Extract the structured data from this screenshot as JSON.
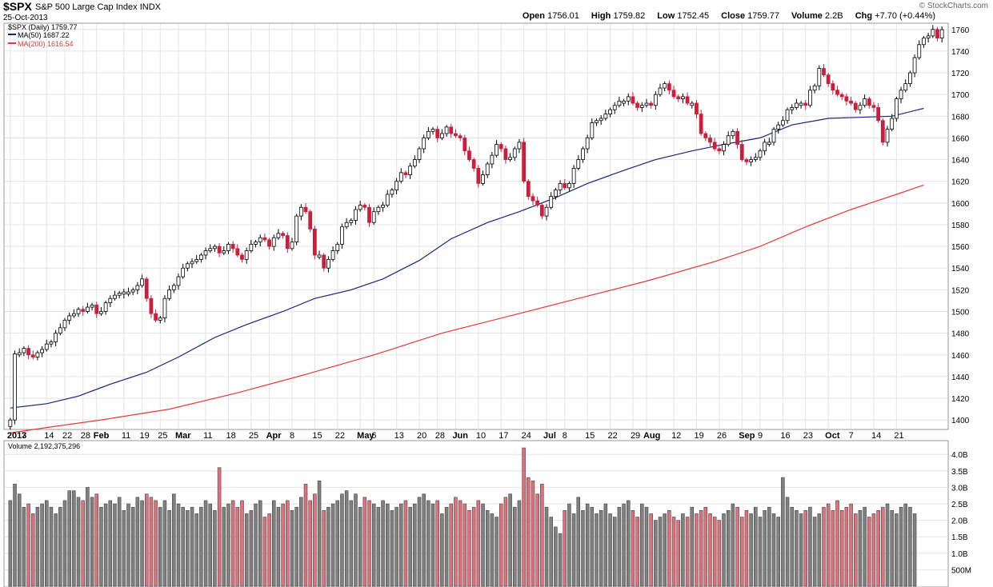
{
  "header": {
    "symbol": "$SPX",
    "name": "S&P 500 Large Cap Index",
    "exchange": "INDX",
    "date": "25-Oct-2013",
    "brand": "© StockCharts.com",
    "open_label": "Open",
    "open": "1756.01",
    "high_label": "High",
    "high": "1759.82",
    "low_label": "Low",
    "low": "1752.45",
    "close_label": "Close",
    "close": "1759.77",
    "volume_label": "Volume",
    "volume": "2.2B",
    "chg_label": "Chg",
    "chg": "+7.70 (+0.44%)"
  },
  "legend": {
    "price": "$SPX (Daily) 1759.77",
    "ma50": "MA(50) 1687.22",
    "ma200": "MA(200) 1616.54"
  },
  "colors": {
    "up": "#000000",
    "down": "#cc1e3c",
    "ma50": "#1a237e",
    "ma200": "#e53935",
    "vol_up": "#808080",
    "vol_down": "#e0707a",
    "grid": "#e4e4e4"
  },
  "chart_data": [
    {
      "type": "candlestick",
      "ylim": [
        1392,
        1765
      ],
      "y_ticks": [
        1400,
        1420,
        1440,
        1460,
        1480,
        1500,
        1520,
        1540,
        1560,
        1580,
        1600,
        1620,
        1640,
        1660,
        1680,
        1700,
        1720,
        1740,
        1760
      ],
      "x_tick_labels": [
        {
          "label": "2013",
          "i": 0,
          "bold": true
        },
        {
          "label": "7",
          "i": 3
        },
        {
          "label": "14",
          "i": 8
        },
        {
          "label": "22",
          "i": 12
        },
        {
          "label": "28",
          "i": 16
        },
        {
          "label": "Feb",
          "i": 19,
          "bold": true
        },
        {
          "label": "11",
          "i": 25
        },
        {
          "label": "19",
          "i": 29
        },
        {
          "label": "25",
          "i": 33
        },
        {
          "label": "Mar",
          "i": 37,
          "bold": true
        },
        {
          "label": "11",
          "i": 43
        },
        {
          "label": "18",
          "i": 48
        },
        {
          "label": "25",
          "i": 53
        },
        {
          "label": "Apr",
          "i": 57,
          "bold": true
        },
        {
          "label": "8",
          "i": 62
        },
        {
          "label": "15",
          "i": 67
        },
        {
          "label": "22",
          "i": 72
        },
        {
          "label": "May",
          "i": 77,
          "bold": true
        },
        {
          "label": "6",
          "i": 80
        },
        {
          "label": "13",
          "i": 85
        },
        {
          "label": "20",
          "i": 90
        },
        {
          "label": "28",
          "i": 94
        },
        {
          "label": "Jun",
          "i": 98,
          "bold": true
        },
        {
          "label": "10",
          "i": 103
        },
        {
          "label": "17",
          "i": 108
        },
        {
          "label": "24",
          "i": 113
        },
        {
          "label": "Jul",
          "i": 118,
          "bold": true
        },
        {
          "label": "8",
          "i": 122
        },
        {
          "label": "15",
          "i": 127
        },
        {
          "label": "22",
          "i": 132
        },
        {
          "label": "29",
          "i": 137
        },
        {
          "label": "Aug",
          "i": 140,
          "bold": true
        },
        {
          "label": "12",
          "i": 146
        },
        {
          "label": "19",
          "i": 151
        },
        {
          "label": "26",
          "i": 156
        },
        {
          "label": "Sep",
          "i": 161,
          "bold": true
        },
        {
          "label": "9",
          "i": 165
        },
        {
          "label": "16",
          "i": 170
        },
        {
          "label": "23",
          "i": 175
        },
        {
          "label": "Oct",
          "i": 180,
          "bold": true
        },
        {
          "label": "7",
          "i": 185
        },
        {
          "label": "14",
          "i": 190
        },
        {
          "label": "21",
          "i": 195
        }
      ],
      "close": [
        1400,
        1461,
        1462,
        1466,
        1460,
        1458,
        1462,
        1465,
        1470,
        1472,
        1480,
        1485,
        1492,
        1496,
        1498,
        1502,
        1500,
        1504,
        1506,
        1498,
        1500,
        1508,
        1512,
        1515,
        1517,
        1518,
        1518,
        1520,
        1524,
        1530,
        1512,
        1498,
        1492,
        1494,
        1512,
        1520,
        1524,
        1532,
        1540,
        1544,
        1546,
        1548,
        1552,
        1556,
        1558,
        1560,
        1554,
        1556,
        1562,
        1558,
        1552,
        1548,
        1556,
        1562,
        1564,
        1568,
        1566,
        1560,
        1568,
        1572,
        1570,
        1558,
        1564,
        1588,
        1596,
        1592,
        1576,
        1552,
        1552,
        1540,
        1548,
        1556,
        1562,
        1578,
        1582,
        1584,
        1594,
        1598,
        1596,
        1582,
        1592,
        1596,
        1598,
        1608,
        1612,
        1620,
        1628,
        1626,
        1634,
        1640,
        1650,
        1660,
        1666,
        1668,
        1660,
        1664,
        1670,
        1664,
        1662,
        1660,
        1648,
        1640,
        1632,
        1618,
        1626,
        1636,
        1644,
        1654,
        1650,
        1640,
        1642,
        1650,
        1656,
        1620,
        1606,
        1602,
        1598,
        1588,
        1596,
        1606,
        1612,
        1618,
        1614,
        1618,
        1632,
        1640,
        1650,
        1660,
        1674,
        1676,
        1678,
        1682,
        1686,
        1690,
        1694,
        1694,
        1698,
        1692,
        1688,
        1690,
        1692,
        1690,
        1700,
        1706,
        1710,
        1704,
        1698,
        1696,
        1698,
        1692,
        1692,
        1682,
        1664,
        1660,
        1656,
        1650,
        1648,
        1654,
        1662,
        1666,
        1654,
        1640,
        1638,
        1640,
        1642,
        1648,
        1656,
        1656,
        1668,
        1672,
        1676,
        1686,
        1688,
        1692,
        1692,
        1690,
        1704,
        1708,
        1724,
        1718,
        1710,
        1704,
        1700,
        1698,
        1694,
        1692,
        1686,
        1690,
        1696,
        1690,
        1688,
        1676,
        1656,
        1668,
        1678,
        1696,
        1704,
        1710,
        1720,
        1734,
        1746,
        1752,
        1754,
        1760,
        1752,
        1759.77
      ],
      "ma50_points": [
        [
          0,
          1411
        ],
        [
          8,
          1415
        ],
        [
          15,
          1422
        ],
        [
          22,
          1433
        ],
        [
          30,
          1444
        ],
        [
          37,
          1458
        ],
        [
          45,
          1476
        ],
        [
          52,
          1488
        ],
        [
          60,
          1500
        ],
        [
          67,
          1512
        ],
        [
          75,
          1520
        ],
        [
          82,
          1530
        ],
        [
          90,
          1547
        ],
        [
          97,
          1567
        ],
        [
          105,
          1582
        ],
        [
          112,
          1592
        ],
        [
          120,
          1605
        ],
        [
          127,
          1618
        ],
        [
          135,
          1630
        ],
        [
          142,
          1640
        ],
        [
          150,
          1648
        ],
        [
          157,
          1654
        ],
        [
          165,
          1660
        ],
        [
          172,
          1672
        ],
        [
          180,
          1678
        ],
        [
          187,
          1679
        ],
        [
          194,
          1680
        ],
        [
          201,
          1687.22
        ]
      ],
      "ma200_points": [
        [
          0,
          1388
        ],
        [
          8,
          1393
        ],
        [
          20,
          1400
        ],
        [
          35,
          1410
        ],
        [
          50,
          1425
        ],
        [
          65,
          1442
        ],
        [
          80,
          1460
        ],
        [
          95,
          1480
        ],
        [
          110,
          1496
        ],
        [
          125,
          1512
        ],
        [
          140,
          1528
        ],
        [
          155,
          1546
        ],
        [
          165,
          1560
        ],
        [
          175,
          1578
        ],
        [
          185,
          1594
        ],
        [
          195,
          1608
        ],
        [
          201,
          1616.54
        ]
      ]
    },
    {
      "type": "bar",
      "title": "Volume 2,192,375,296",
      "ylabel": "",
      "ylim": [
        0,
        4200000000
      ],
      "y_tick_labels": [
        {
          "label": "500M",
          "v": 500000000
        },
        {
          "label": "1.0B",
          "v": 1000000000
        },
        {
          "label": "1.5B",
          "v": 1500000000
        },
        {
          "label": "2.0B",
          "v": 2000000000
        },
        {
          "label": "2.5B",
          "v": 2500000000
        },
        {
          "label": "3.0B",
          "v": 3000000000
        },
        {
          "label": "3.5B",
          "v": 3500000000
        },
        {
          "label": "4.0B",
          "v": 4000000000
        }
      ],
      "values": [
        2.6,
        3.1,
        2.8,
        2.4,
        2.5,
        2.2,
        2.4,
        2.5,
        2.6,
        2.4,
        2.2,
        2.4,
        2.6,
        2.9,
        2.9,
        2.7,
        2.6,
        3.0,
        2.7,
        2.8,
        2.4,
        2.5,
        2.6,
        2.5,
        2.7,
        2.3,
        2.5,
        2.4,
        2.7,
        2.6,
        2.8,
        2.7,
        2.6,
        2.4,
        2.6,
        2.3,
        2.8,
        2.5,
        2.4,
        2.3,
        2.4,
        2.2,
        2.4,
        2.6,
        2.5,
        2.3,
        3.6,
        2.4,
        2.5,
        2.6,
        2.4,
        2.6,
        2.2,
        2.3,
        2.5,
        2.6,
        2.1,
        2.2,
        2.6,
        2.4,
        2.5,
        2.6,
        2.3,
        2.4,
        2.7,
        3.1,
        2.6,
        2.8,
        3.2,
        2.3,
        2.4,
        2.5,
        2.6,
        2.8,
        2.9,
        2.6,
        2.8,
        2.4,
        2.7,
        2.6,
        2.5,
        2.4,
        2.6,
        2.5,
        2.3,
        2.4,
        2.5,
        2.6,
        2.4,
        2.5,
        2.7,
        2.8,
        2.6,
        2.5,
        2.6,
        2.2,
        2.4,
        2.5,
        2.7,
        2.6,
        2.5,
        2.3,
        2.4,
        2.6,
        2.5,
        2.3,
        2.2,
        2.1,
        2.5,
        2.7,
        2.8,
        2.4,
        2.6,
        4.2,
        3.3,
        3.2,
        2.8,
        3.1,
        2.4,
        2.1,
        1.8,
        1.6,
        2.3,
        2.5,
        2.2,
        2.7,
        2.3,
        2.5,
        2.4,
        2.2,
        2.3,
        2.5,
        2.2,
        2.1,
        2.4,
        2.5,
        2.6,
        2.3,
        2.1,
        2.5,
        2.4,
        2.2,
        2.0,
        2.1,
        2.2,
        2.3,
        2.1,
        2.0,
        2.2,
        2.1,
        2.4,
        2.2,
        2.3,
        2.4,
        2.2,
        2.1,
        2.0,
        2.2,
        2.3,
        2.5,
        2.4,
        2.1,
        2.3,
        2.2,
        2.4,
        2.1,
        2.3,
        2.4,
        2.2,
        2.1,
        3.3,
        2.7,
        2.4,
        2.3,
        2.2,
        2.3,
        2.4,
        2.1,
        2.2,
        2.4,
        2.5,
        2.3,
        2.6,
        2.3,
        2.4,
        2.5,
        2.2,
        2.3,
        2.4,
        2.1,
        2.2,
        2.3,
        2.4,
        2.5,
        2.3,
        2.2,
        2.4,
        2.5,
        2.4,
        2.2
      ],
      "value_unit_multiplier": 1000000000
    }
  ]
}
